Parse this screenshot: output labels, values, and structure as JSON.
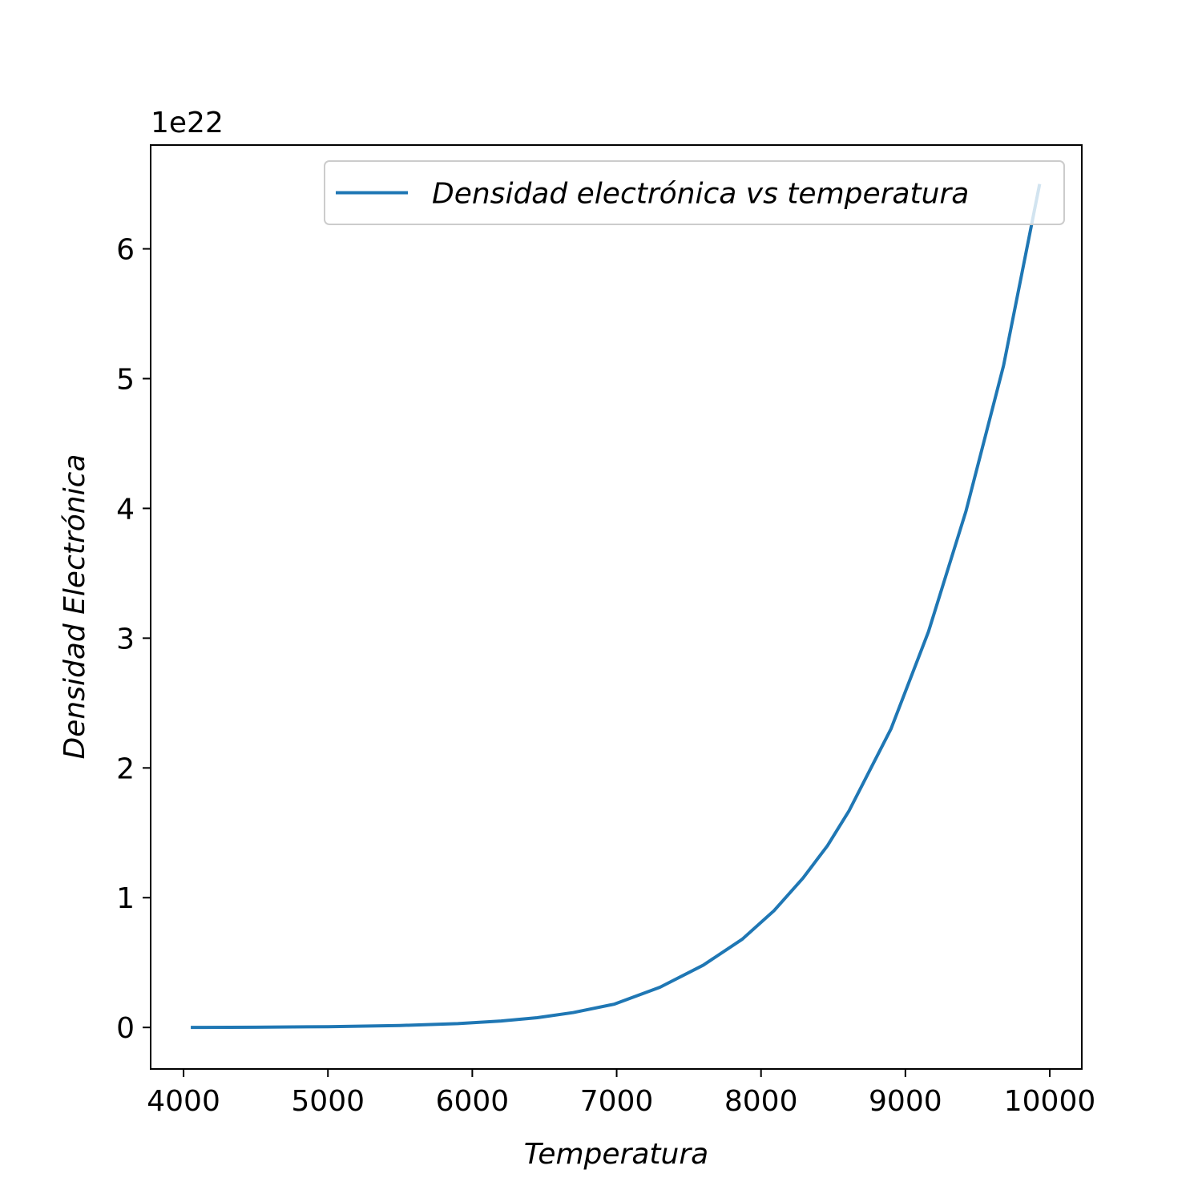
{
  "chart_data": {
    "type": "line",
    "x_label": "Temperatura",
    "y_label": "Densidad Electrónica",
    "y_offset_label": "1e22",
    "x": [
      4050,
      4500,
      5000,
      5500,
      5900,
      6200,
      6450,
      6700,
      6985,
      7300,
      7600,
      7870,
      8090,
      8290,
      8460,
      8610,
      8900,
      9160,
      9420,
      9680,
      9930
    ],
    "series": [
      {
        "name": "Densidad electrónica vs temperatura",
        "color": "#1f77b4",
        "values": [
          0.0,
          0.002,
          0.006,
          0.015,
          0.03,
          0.05,
          0.075,
          0.115,
          0.18,
          0.31,
          0.48,
          0.68,
          0.9,
          1.15,
          1.4,
          1.67,
          2.3,
          3.05,
          3.98,
          5.1,
          6.5
        ]
      }
    ],
    "xlim": [
      3772,
      10222
    ],
    "ylim": [
      -0.32,
      6.8
    ],
    "xticks": [
      4000,
      5000,
      6000,
      7000,
      8000,
      9000,
      10000
    ],
    "yticks": [
      0,
      1,
      2,
      3,
      4,
      5,
      6
    ],
    "legend": "upper right"
  }
}
